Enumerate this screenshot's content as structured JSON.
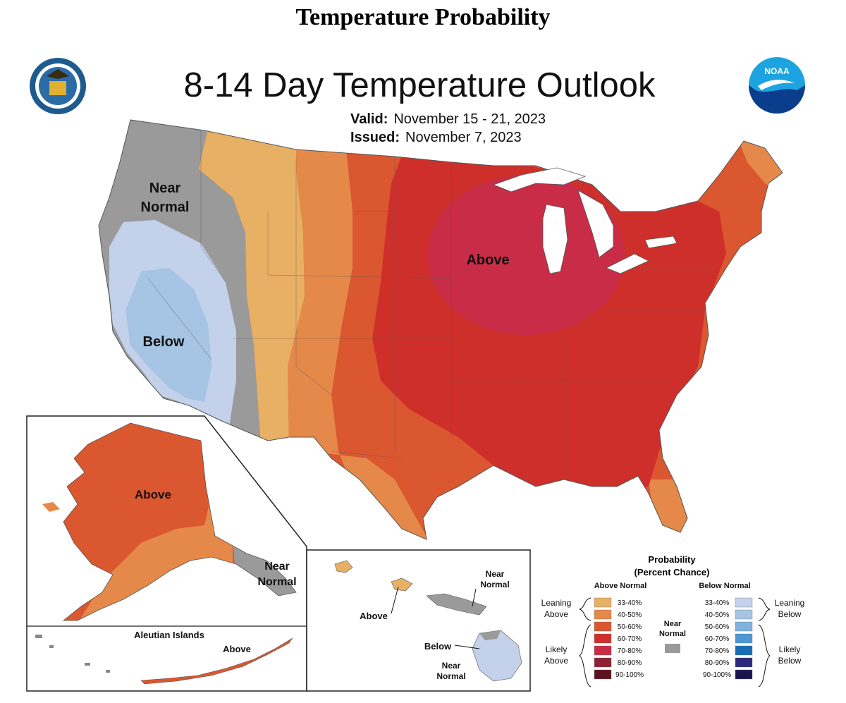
{
  "page": {
    "heading": "Temperature Probability"
  },
  "map": {
    "title": "8-14 Day Temperature Outlook",
    "valid_label": "Valid:",
    "valid_dates": "November 15 - 21, 2023",
    "issued_label": "Issued:",
    "issued_date": "November 7, 2023",
    "logo_left": "doc-seal-icon",
    "logo_right": "noaa-logo-icon",
    "regions": {
      "near_normal_west": "Near Normal",
      "below_west": "Below",
      "above_midwest": "Above",
      "alaska_above": "Above",
      "alaska_near_normal": "Near Normal",
      "aleutian_title": "Aleutian Islands",
      "aleutian_above": "Above",
      "hawaii_above": "Above",
      "hawaii_near_normal_top": "Near Normal",
      "hawaii_below": "Below",
      "hawaii_near_normal_bottom": "Near Normal"
    }
  },
  "legend": {
    "title_line1": "Probability",
    "title_line2": "(Percent Chance)",
    "above_header": "Above Normal",
    "below_header": "Below Normal",
    "leaning_above": "Leaning Above",
    "likely_above": "Likely Above",
    "leaning_below": "Leaning Below",
    "likely_below": "Likely Below",
    "near_normal": "Near Normal",
    "above_items": [
      {
        "label": "33-40%",
        "color": "#E8B064"
      },
      {
        "label": "40-50%",
        "color": "#E5894A"
      },
      {
        "label": "50-60%",
        "color": "#DB5730"
      },
      {
        "label": "60-70%",
        "color": "#CF2F2A"
      },
      {
        "label": "70-80%",
        "color": "#C92C47"
      },
      {
        "label": "80-90%",
        "color": "#8E2132"
      },
      {
        "label": "90-100%",
        "color": "#5B1320"
      }
    ],
    "below_items": [
      {
        "label": "33-40%",
        "color": "#C3D1EA"
      },
      {
        "label": "40-50%",
        "color": "#A6C4E4"
      },
      {
        "label": "50-60%",
        "color": "#7FB2E0"
      },
      {
        "label": "60-70%",
        "color": "#4D97D6"
      },
      {
        "label": "70-80%",
        "color": "#1A6CB4"
      },
      {
        "label": "80-90%",
        "color": "#2A2A7A"
      },
      {
        "label": "90-100%",
        "color": "#1C1450"
      }
    ],
    "near_normal_color": "#9A9A9A"
  }
}
